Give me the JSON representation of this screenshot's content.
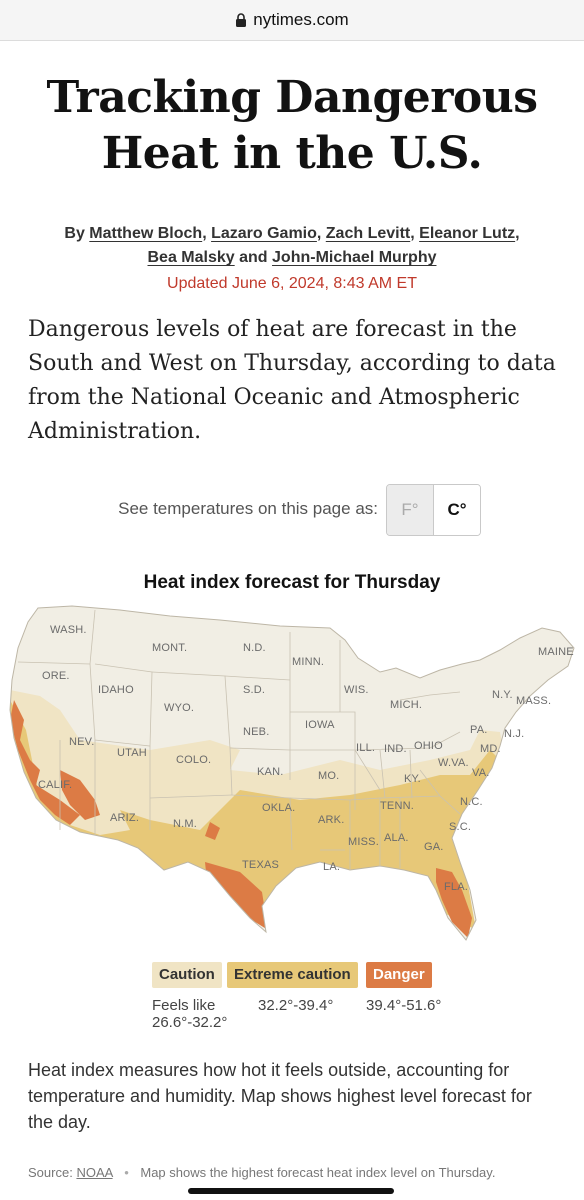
{
  "browser": {
    "url": "nytimes.com"
  },
  "article": {
    "headline_line1": "Tracking Dangerous",
    "headline_line2": "Heat in the U.S.",
    "byline_prefix": "By",
    "authors": [
      "Matthew Bloch",
      "Lazaro Gamio",
      "Zach Levitt",
      "Eleanor Lutz",
      "Bea Malsky",
      "John-Michael Murphy"
    ],
    "byline_and": "and",
    "updated": "Updated June 6, 2024, 8:43 AM ET",
    "lede": "Dangerous levels of heat are forecast in the South and West on Thursday, according to data from the National Oceanic and Atmospheric Administration."
  },
  "units": {
    "label": "See temperatures on this page as:",
    "fahrenheit": "F°",
    "celsius": "C°",
    "selected": "C°"
  },
  "map": {
    "title": "Heat index forecast for Thursday",
    "states": [
      "WASH.",
      "MONT.",
      "N.D.",
      "MINN.",
      "MAINE",
      "ORE.",
      "IDAHO",
      "S.D.",
      "WIS.",
      "N.Y.",
      "MASS.",
      "WYO.",
      "MICH.",
      "IOWA",
      "NEB.",
      "PA.",
      "N.J.",
      "NEV.",
      "UTAH",
      "ILL.",
      "IND.",
      "OHIO",
      "MD.",
      "COLO.",
      "W.VA.",
      "CALIF.",
      "KAN.",
      "MO.",
      "KY.",
      "VA.",
      "TENN.",
      "N.C.",
      "OKLA.",
      "ARIZ.",
      "N.M.",
      "ARK.",
      "S.C.",
      "MISS.",
      "ALA.",
      "GA.",
      "TEXAS",
      "LA.",
      "FLA."
    ],
    "colors": {
      "none": "#f1eee4",
      "caution": "#f0e4c4",
      "extreme": "#e7c878",
      "danger": "#dc7b45"
    }
  },
  "legend": {
    "caution": "Caution",
    "extreme": "Extreme caution",
    "danger": "Danger",
    "caution_range_1": "Feels like",
    "caution_range_2": "26.6°-32.2°",
    "extreme_range": "32.2°-39.4°",
    "danger_range": "39.4°-51.6°"
  },
  "footnote": "Heat index measures how hot it feels outside, accounting for temperature and humidity. Map shows highest level forecast for the day.",
  "source": {
    "prefix": "Source:",
    "link": "NOAA",
    "note": "Map shows the highest forecast heat index level on Thursday."
  }
}
